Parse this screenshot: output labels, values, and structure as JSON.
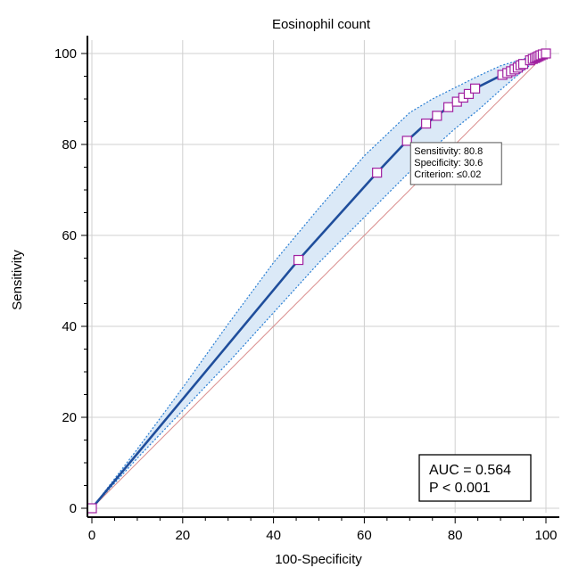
{
  "chart_data": {
    "type": "line",
    "title": "Eosinophil count",
    "xlabel": "100-Specificity",
    "ylabel": "Sensitivity",
    "xlim": [
      0,
      100
    ],
    "ylim": [
      0,
      100
    ],
    "x_ticks": [
      "0",
      "20",
      "40",
      "60",
      "80",
      "100"
    ],
    "y_ticks": [
      "0",
      "20",
      "40",
      "60",
      "80",
      "100"
    ],
    "grid": true,
    "colors": {
      "roc_line": "#1f4e9c",
      "ci_band": "#dbe9f7",
      "ci_border": "#2a7fd4",
      "marker": "#a020a0",
      "diagonal": "#d98c8c",
      "grid": "#d0d0d0"
    },
    "series": [
      {
        "x": [
          0,
          45.5,
          62.8,
          69.4,
          73.6,
          76.0,
          78.5,
          80.4,
          81.8,
          83.0,
          84.4,
          90.4,
          91.5,
          92.3,
          93.1,
          93.8,
          94.4,
          95.0,
          96.5,
          97.1,
          97.6,
          98.0,
          98.4,
          98.8,
          99.3,
          100
        ],
        "y": [
          0,
          54.6,
          73.8,
          80.8,
          84.6,
          86.3,
          88.2,
          89.4,
          90.3,
          91.1,
          92.3,
          95.3,
          95.7,
          96.1,
          96.5,
          96.9,
          97.4,
          97.7,
          98.5,
          98.8,
          99.0,
          99.2,
          99.4,
          99.6,
          99.8,
          100
        ]
      }
    ],
    "ci_upper": {
      "x": [
        0,
        10,
        20,
        30,
        40,
        50,
        60,
        70,
        75,
        80,
        85,
        90,
        95,
        100
      ],
      "y": [
        0,
        13,
        26.5,
        40.5,
        54,
        66,
        77.5,
        87,
        90,
        92.5,
        95,
        97.3,
        98.8,
        100
      ]
    },
    "ci_lower": {
      "x": [
        0,
        10,
        20,
        30,
        40,
        50,
        60,
        70,
        75,
        80,
        85,
        90,
        95,
        100
      ],
      "y": [
        0,
        11,
        21.5,
        32,
        43,
        54,
        64,
        74,
        79,
        83.5,
        87.5,
        92,
        96.3,
        100
      ]
    },
    "annotation": {
      "x": 69.4,
      "y": 80.8,
      "lines": [
        "Sensitivity: 80.8",
        "Specificity: 30.6",
        "Criterion: ≤0.02"
      ]
    },
    "stats_box": {
      "lines": [
        "AUC = 0.564",
        "P < 0.001"
      ],
      "placement": "bottom-right"
    }
  }
}
